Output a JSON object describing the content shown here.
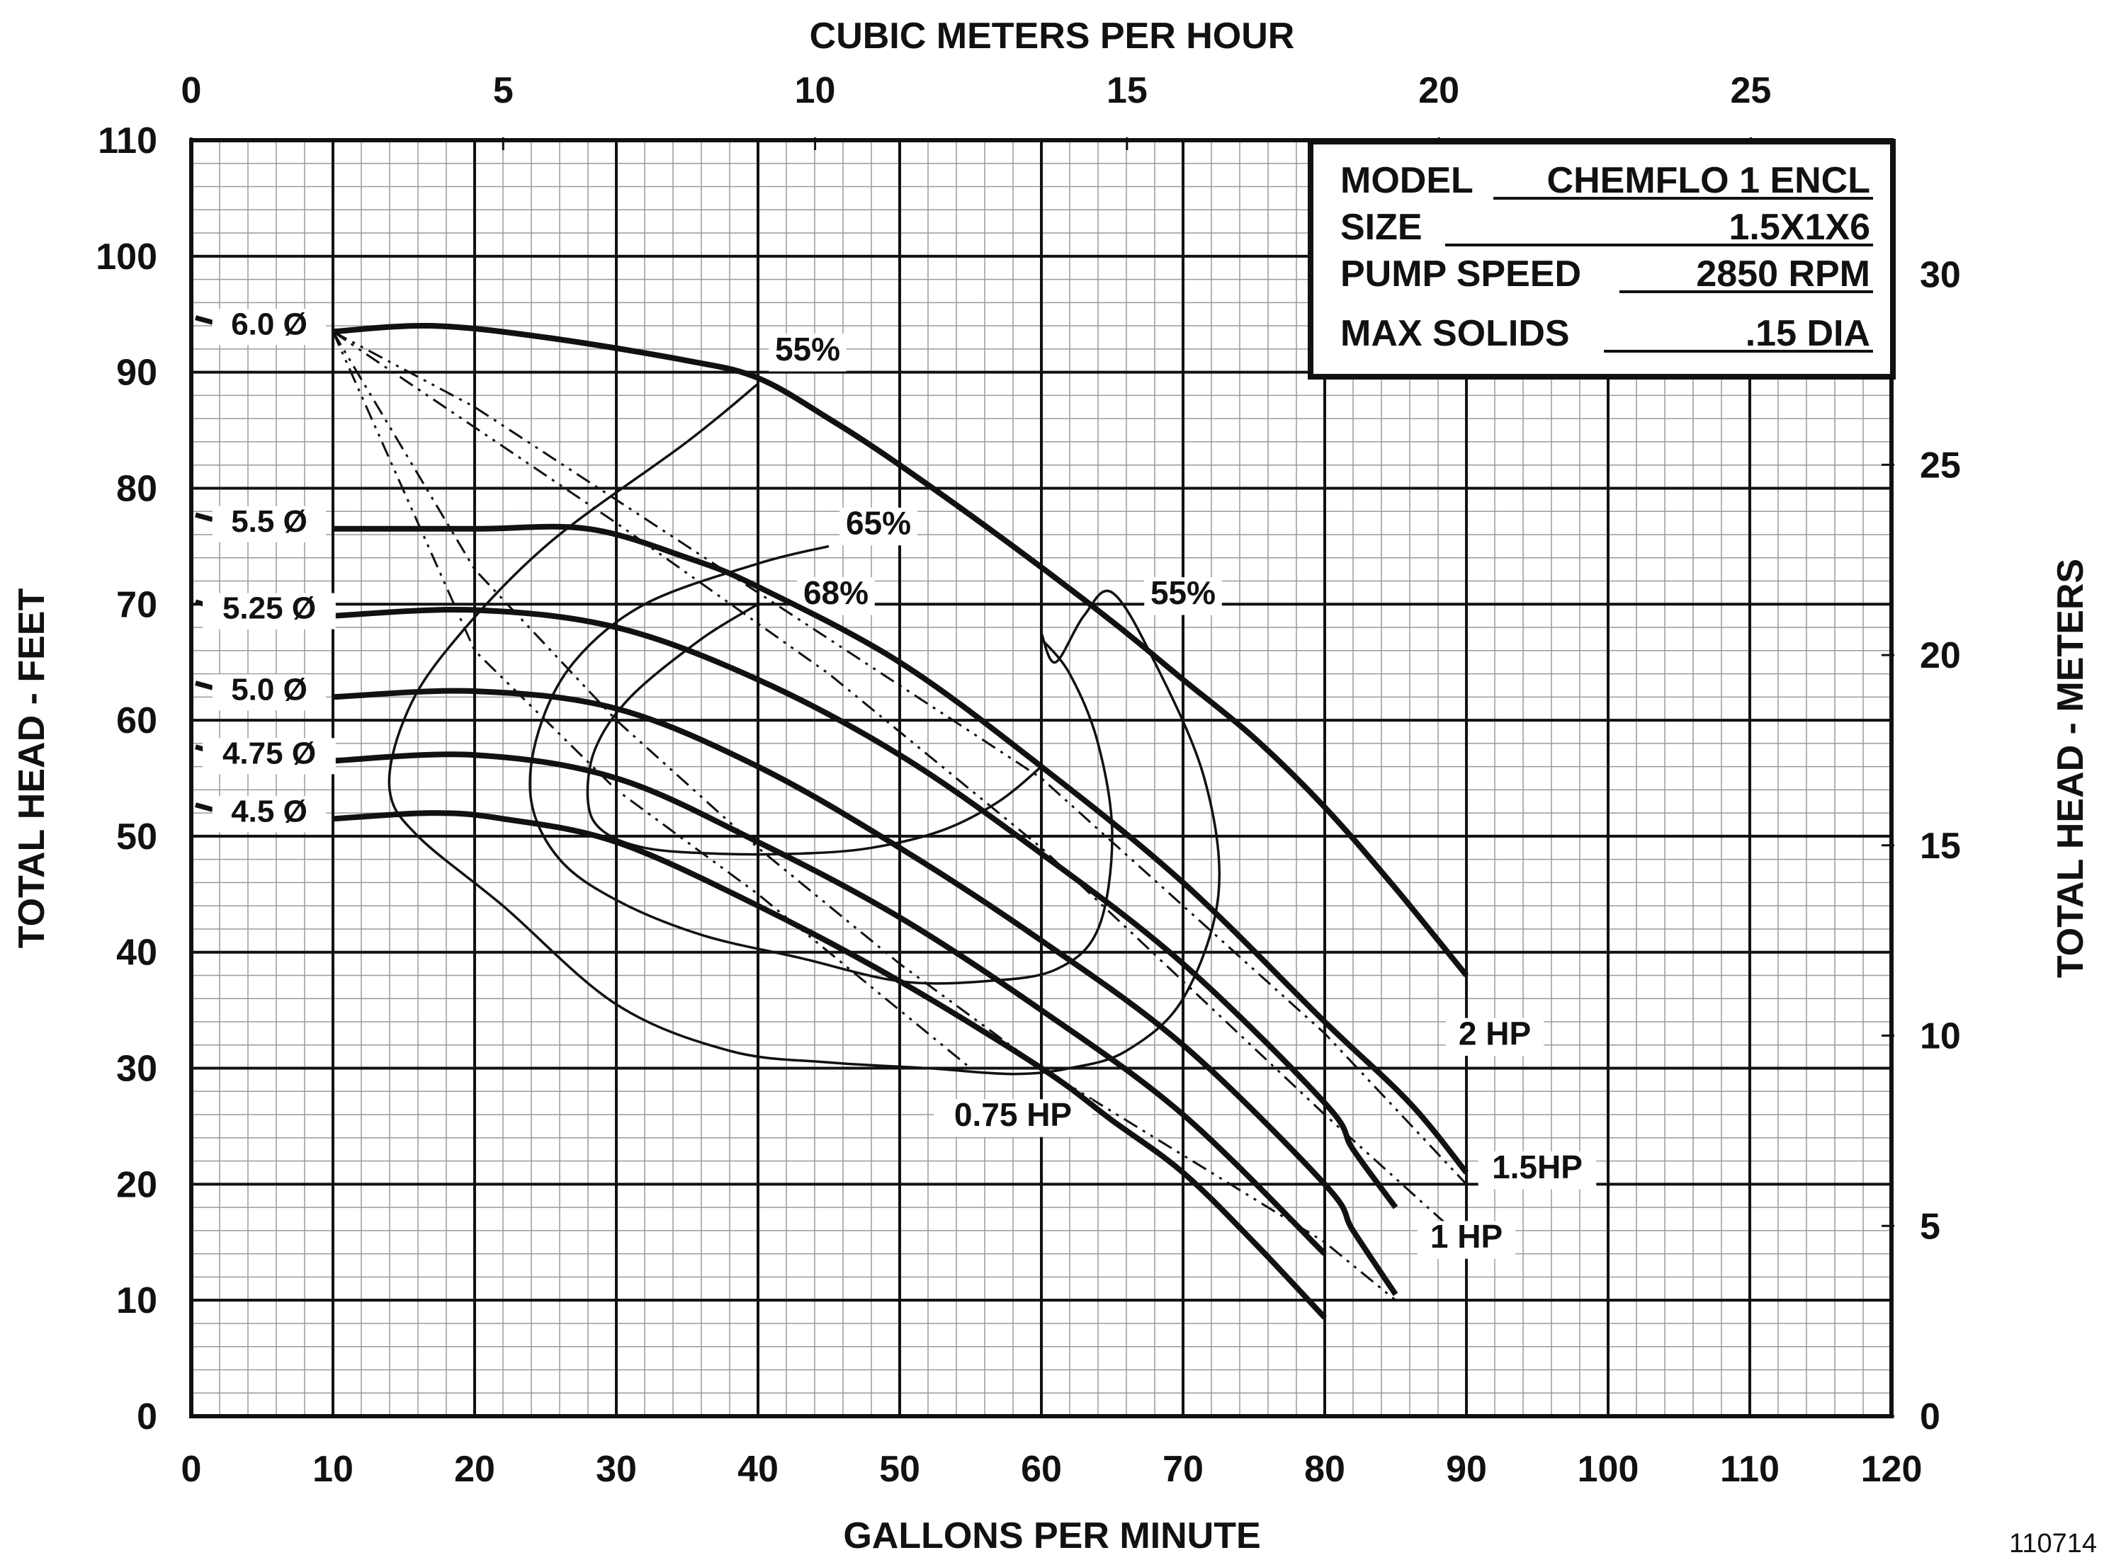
{
  "chart_data": {
    "type": "line",
    "title": "",
    "top_axis_label": "CUBIC METERS PER HOUR",
    "xlabel": "GALLONS PER MINUTE",
    "ylabel_left": "TOTAL HEAD - FEET",
    "ylabel_right": "TOTAL HEAD - METERS",
    "xlim": [
      0,
      120
    ],
    "ylim": [
      0,
      110
    ],
    "x_ticks": [
      "0",
      "10",
      "20",
      "30",
      "40",
      "50",
      "60",
      "70",
      "80",
      "90",
      "100",
      "110",
      "120"
    ],
    "y_ticks": [
      "0",
      "10",
      "20",
      "30",
      "40",
      "50",
      "60",
      "70",
      "80",
      "90",
      "100",
      "110"
    ],
    "top_ticks": [
      "0",
      "5",
      "10",
      "15",
      "20",
      "25"
    ],
    "right_ticks": [
      "0",
      "5",
      "10",
      "15",
      "20",
      "25",
      "30"
    ],
    "grid": true,
    "info_box": {
      "model_label": "MODEL",
      "model_value": "CHEMFLO 1 ENCL",
      "size_label": "SIZE",
      "size_value": "1.5X1X6",
      "speed_label": "PUMP SPEED",
      "speed_value": "2850 RPM",
      "solids_label": "MAX SOLIDS",
      "solids_value": ".15 DIA"
    },
    "series": [
      {
        "name": "6.0 Ø",
        "x": [
          10,
          17,
          25,
          35,
          40,
          45,
          50,
          58,
          65,
          70,
          75,
          80,
          85,
          90
        ],
        "y": [
          93.5,
          94,
          93,
          91,
          89.5,
          86,
          82,
          75,
          68.5,
          63.5,
          58.5,
          52.5,
          45.5,
          38
        ]
      },
      {
        "name": "5.5 Ø",
        "x": [
          10,
          20,
          28,
          35,
          40,
          50,
          60,
          70,
          80,
          86,
          90
        ],
        "y": [
          76.5,
          76.5,
          76.5,
          74,
          71.5,
          65,
          56,
          46,
          34,
          27,
          21
        ]
      },
      {
        "name": "5.25 Ø",
        "x": [
          10,
          20,
          30,
          40,
          50,
          60,
          70,
          80,
          82,
          85
        ],
        "y": [
          69,
          69.5,
          68,
          63.5,
          57,
          48.5,
          39,
          27,
          23,
          18
        ]
      },
      {
        "name": "5.0 Ø",
        "x": [
          10,
          20,
          30,
          40,
          50,
          60,
          70,
          80,
          82,
          85
        ],
        "y": [
          62,
          62.5,
          61,
          56,
          49,
          41,
          32,
          20,
          16,
          10.5
        ]
      },
      {
        "name": "4.75 Ø",
        "x": [
          10,
          20,
          30,
          40,
          50,
          60,
          70,
          80
        ],
        "y": [
          56.5,
          57,
          55,
          49.5,
          43,
          35,
          26,
          14
        ]
      },
      {
        "name": "4.5 Ø",
        "x": [
          10,
          17,
          22,
          30,
          40,
          50,
          60,
          65,
          70,
          75,
          80
        ],
        "y": [
          51.5,
          52,
          51.5,
          49.5,
          44,
          37.5,
          30,
          25.5,
          21,
          15,
          8.5
        ]
      }
    ],
    "efficiency_curves": [
      {
        "name": "55%",
        "x": [
          40,
          35,
          25,
          18,
          15,
          14,
          16,
          22,
          30,
          38,
          45,
          52,
          58,
          62,
          66,
          70,
          72.5,
          71.5,
          68,
          65,
          63,
          61,
          60
        ],
        "y": [
          89,
          84,
          75,
          66,
          60,
          54,
          50,
          44,
          35.5,
          31.5,
          30.5,
          30,
          29.5,
          30,
          31.5,
          36,
          45,
          55,
          65,
          71,
          69,
          65,
          67.5
        ]
      },
      {
        "name": "65%",
        "x": [
          45,
          40,
          32,
          27,
          24.5,
          24,
          26,
          30,
          36,
          43,
          50,
          56,
          61,
          64,
          65,
          64,
          62,
          60
        ],
        "y": [
          75,
          73.5,
          70,
          65,
          59,
          53,
          48,
          44.5,
          41.5,
          39.5,
          37.5,
          37.5,
          38.5,
          42,
          50,
          58,
          64,
          67
        ]
      },
      {
        "name": "68%",
        "x": [
          40,
          36,
          31,
          28.5,
          28,
          29,
          32,
          37,
          43,
          48,
          53,
          57,
          60
        ],
        "y": [
          70,
          67,
          62,
          57.5,
          53,
          50.5,
          49,
          48.5,
          48.5,
          49,
          50.5,
          53,
          56
        ]
      }
    ],
    "power_lines": [
      {
        "name": "2 HP",
        "x": [
          10,
          20,
          40,
          60,
          80,
          90
        ],
        "y": [
          93.5,
          87,
          71,
          55,
          33,
          20
        ]
      },
      {
        "name": "1.5HP",
        "x": [
          10,
          30,
          45,
          60,
          80,
          90
        ],
        "y": [
          93.5,
          77,
          64,
          49,
          26,
          15
        ]
      },
      {
        "name": "1 HP",
        "x": [
          10,
          20,
          30,
          40,
          50,
          60,
          80,
          85
        ],
        "y": [
          93.5,
          73,
          60,
          49,
          39,
          30,
          15,
          10
        ]
      },
      {
        "name": "0.75 HP",
        "x": [
          10,
          20,
          30,
          40,
          45,
          50,
          55
        ],
        "y": [
          93.5,
          66,
          54,
          45,
          40,
          35,
          30
        ]
      }
    ],
    "annotations": [
      "55%",
      "65%",
      "68%",
      "55%",
      "2 HP",
      "1.5HP",
      "1 HP",
      "0.75 HP"
    ],
    "figure_code": "110714"
  }
}
